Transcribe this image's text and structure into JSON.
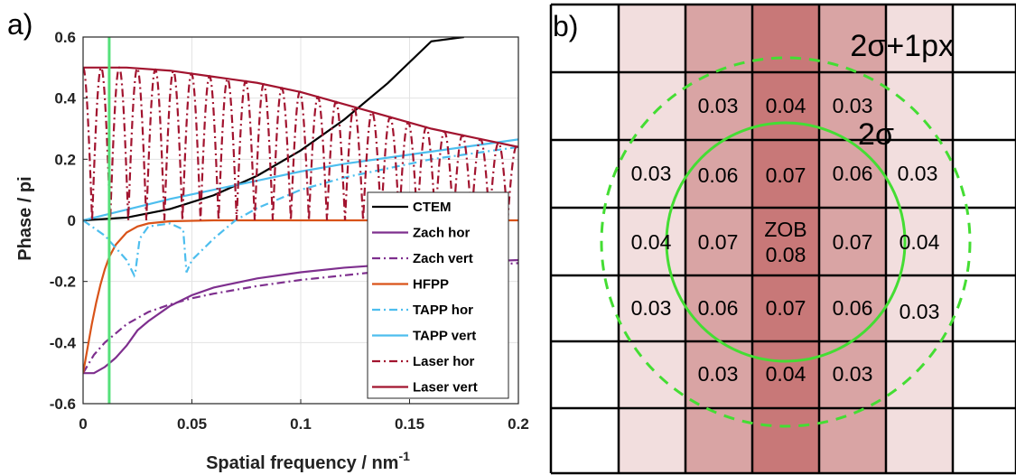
{
  "chart_data": [
    {
      "type": "line",
      "panel_label": "a)",
      "title": "",
      "xlabel": "Spatial frequency / nm",
      "xlabel_superscript": "-1",
      "ylabel": "Phase / pi",
      "xlim": [
        0,
        0.2
      ],
      "ylim": [
        -0.6,
        0.6
      ],
      "grid": true,
      "legend_position": "bottom-right",
      "xticks": [
        0,
        0.05,
        0.1,
        0.15,
        0.2
      ],
      "xtick_labels": [
        "0",
        "0.05",
        "0.1",
        "0.15",
        "0.2"
      ],
      "yticks": [
        -0.6,
        -0.4,
        -0.2,
        0,
        0.2,
        0.4,
        0.6
      ],
      "ytick_labels": [
        "-0.6",
        "-0.4",
        "-0.2",
        "0",
        "0.2",
        "0.4",
        "0.6"
      ],
      "vertical_marker": {
        "x": 0.012,
        "color": "#55e07a"
      },
      "series": [
        {
          "name": "CTEM",
          "color": "#000000",
          "dash": "solid",
          "x": [
            0,
            0.02,
            0.04,
            0.06,
            0.08,
            0.1,
            0.12,
            0.14,
            0.16,
            0.175
          ],
          "y": [
            0,
            0.009,
            0.037,
            0.082,
            0.146,
            0.229,
            0.33,
            0.449,
            0.586,
            0.6
          ]
        },
        {
          "name": "Zach hor",
          "color": "#7e2f8e",
          "dash": "solid",
          "x": [
            0,
            0.005,
            0.01,
            0.015,
            0.02,
            0.025,
            0.03,
            0.04,
            0.05,
            0.06,
            0.08,
            0.1,
            0.12,
            0.14,
            0.16,
            0.18,
            0.2
          ],
          "y": [
            -0.5,
            -0.5,
            -0.48,
            -0.45,
            -0.41,
            -0.36,
            -0.33,
            -0.28,
            -0.245,
            -0.22,
            -0.19,
            -0.17,
            -0.155,
            -0.145,
            -0.14,
            -0.135,
            -0.13
          ]
        },
        {
          "name": "Zach vert",
          "color": "#7e2f8e",
          "dash": "dashdot",
          "x": [
            0,
            0.005,
            0.01,
            0.015,
            0.02,
            0.03,
            0.04,
            0.05,
            0.06,
            0.08,
            0.1,
            0.12,
            0.14,
            0.16,
            0.18,
            0.2
          ],
          "y": [
            -0.5,
            -0.44,
            -0.4,
            -0.37,
            -0.34,
            -0.3,
            -0.275,
            -0.255,
            -0.24,
            -0.215,
            -0.195,
            -0.18,
            -0.165,
            -0.155,
            -0.148,
            -0.14
          ]
        },
        {
          "name": "HFPP",
          "color": "#d95319",
          "dash": "solid",
          "x": [
            0,
            0.002,
            0.004,
            0.006,
            0.008,
            0.01,
            0.012,
            0.015,
            0.02,
            0.025,
            0.03,
            0.04,
            0.06,
            0.1,
            0.2
          ],
          "y": [
            -0.5,
            -0.42,
            -0.34,
            -0.27,
            -0.21,
            -0.16,
            -0.12,
            -0.08,
            -0.04,
            -0.02,
            -0.01,
            -0.003,
            0,
            0,
            0
          ]
        },
        {
          "name": "TAPP hor",
          "color": "#4dbeee",
          "dash": "dashdot",
          "x": [
            0,
            0.01,
            0.02,
            0.0235,
            0.024,
            0.026,
            0.03,
            0.04,
            0.046,
            0.0475,
            0.05,
            0.06,
            0.07,
            0.08,
            0.1,
            0.12,
            0.14,
            0.16,
            0.18,
            0.2
          ],
          "y": [
            0,
            -0.05,
            -0.13,
            -0.18,
            -0.17,
            -0.06,
            -0.02,
            -0.01,
            -0.03,
            -0.17,
            -0.13,
            -0.06,
            0,
            0.04,
            0.1,
            0.14,
            0.17,
            0.2,
            0.22,
            0.24
          ]
        },
        {
          "name": "TAPP vert",
          "color": "#4dbeee",
          "dash": "solid",
          "x": [
            0,
            0.02,
            0.04,
            0.06,
            0.08,
            0.1,
            0.12,
            0.14,
            0.16,
            0.18,
            0.2
          ],
          "y": [
            0,
            0.035,
            0.07,
            0.1,
            0.13,
            0.16,
            0.185,
            0.205,
            0.225,
            0.245,
            0.265
          ]
        },
        {
          "name": "Laser hor",
          "color": "#a2142f",
          "dash": "dashdot",
          "oscillation": {
            "amplitude_envelope": "laser-vert",
            "period": 0.0083,
            "phase_start": 0.5
          },
          "x": [
            0,
            0.0041,
            0.0083,
            0.0124,
            0.0166,
            0.0207,
            0.0249
          ],
          "y": [
            0.5,
            0,
            0.5,
            0,
            0.5,
            0,
            0.5
          ]
        },
        {
          "name": "Laser vert",
          "color": "#a2142f",
          "dash": "solid",
          "x": [
            0,
            0.02,
            0.04,
            0.06,
            0.08,
            0.1,
            0.12,
            0.14,
            0.16,
            0.18,
            0.2
          ],
          "y": [
            0.5,
            0.5,
            0.49,
            0.47,
            0.45,
            0.42,
            0.38,
            0.34,
            0.3,
            0.27,
            0.24
          ]
        }
      ]
    },
    {
      "type": "heatmap",
      "panel_label": "b)",
      "title": "",
      "grid_cols": 8,
      "grid_rows": 7,
      "column_shades": [
        "#ffffff",
        "#f2dede",
        "#d9a4a4",
        "#c87878",
        "#d9a4a4",
        "#f2dede",
        "#ffffff"
      ],
      "cells": [
        [
          null,
          null,
          "0.03",
          "0.04",
          "0.03",
          null,
          null
        ],
        [
          null,
          "0.03",
          "0.06",
          "0.07",
          "0.06",
          "0.03",
          null
        ],
        [
          null,
          "0.04",
          "0.07",
          "ZOB\n0.08",
          "0.07",
          "0.04",
          null
        ],
        [
          null,
          "0.03",
          "0.06",
          "0.07",
          "0.06",
          "0.03",
          null
        ],
        [
          null,
          null,
          "0.03",
          "0.04",
          "0.03",
          null,
          null
        ]
      ],
      "circle_inner_label": "2σ",
      "circle_outer_label": "2σ+1px",
      "circle_color": "#44dd33"
    }
  ],
  "legend": {
    "entries": [
      "CTEM",
      "Zach hor",
      "Zach vert",
      "HFPP",
      "TAPP hor",
      "TAPP vert",
      "Laser hor",
      "Laser vert"
    ]
  },
  "heatmap_text": {
    "r1": [
      "0.03",
      "0.04",
      "0.03"
    ],
    "r2": [
      "0.03",
      "0.06",
      "0.07",
      "0.06",
      "0.03"
    ],
    "r3": [
      "0.04",
      "0.07",
      "ZOB",
      "0.08",
      "0.07",
      "0.04"
    ],
    "r4": [
      "0.03",
      "0.06",
      "0.07",
      "0.06",
      "0.03"
    ],
    "r5": [
      "0.03",
      "0.04",
      "0.03"
    ]
  }
}
